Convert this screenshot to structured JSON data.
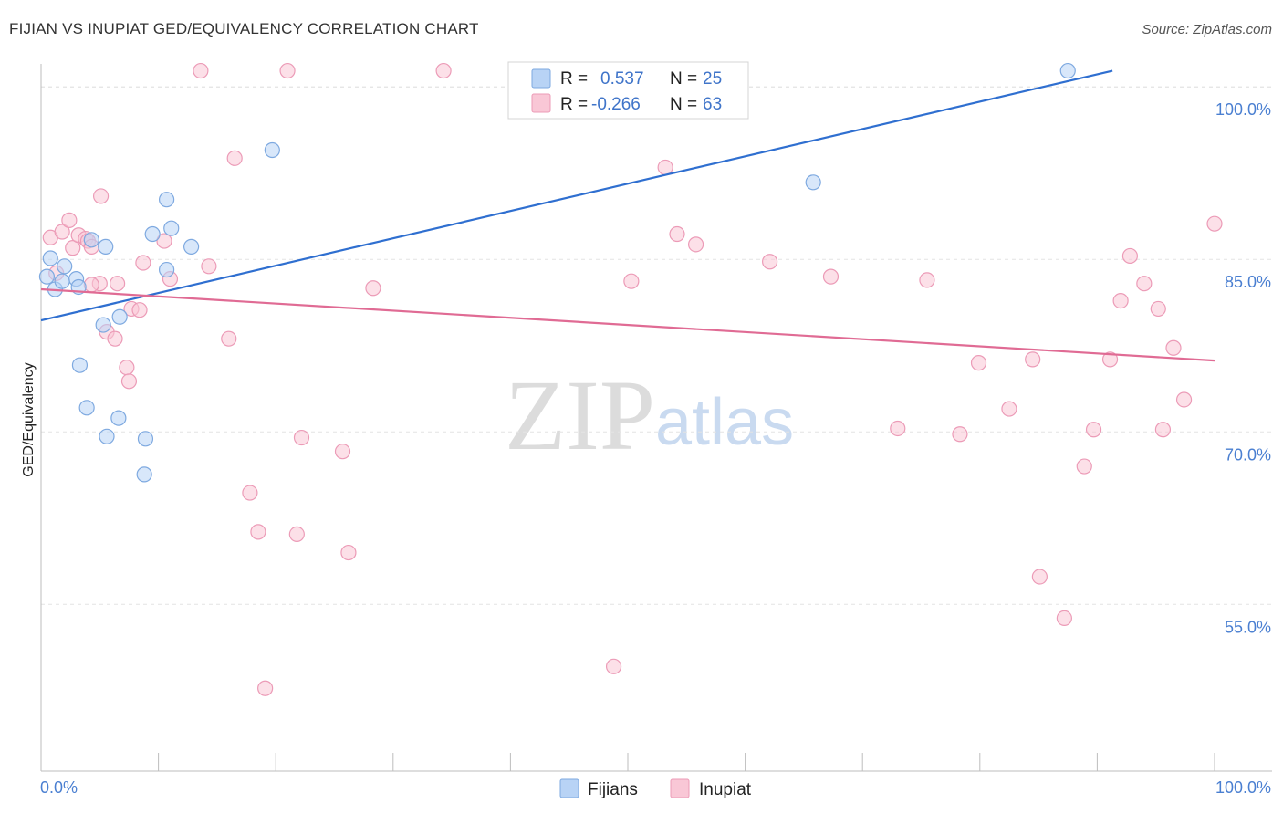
{
  "title": "FIJIAN VS INUPIAT GED/EQUIVALENCY CORRELATION CHART",
  "source": "Source: ZipAtlas.com",
  "watermark": {
    "zip": "ZIP",
    "atlas": "atlas"
  },
  "colors": {
    "fijians_fill": "#b8d3f5",
    "fijians_stroke": "#7ea9e0",
    "fijians_line": "#2f6fd0",
    "inupiat_fill": "#f9c7d6",
    "inupiat_stroke": "#ec9bb7",
    "inupiat_line": "#e06b94",
    "tick_label": "#4a7fd1"
  },
  "legend": {
    "r_label": "R =",
    "n_label": "N =",
    "rows": [
      {
        "series": "Fijians",
        "r": "0.537",
        "n": "25"
      },
      {
        "series": "Inupiat",
        "r": "-0.266",
        "n": "63"
      }
    ]
  },
  "bottom_legend": [
    "Fijians",
    "Inupiat"
  ],
  "chart_data": {
    "type": "scatter",
    "title": "FIJIAN VS INUPIAT GED/EQUIVALENCY CORRELATION CHART",
    "xlabel": "",
    "ylabel": "GED/Equivalency",
    "x_tick_labels": [
      "0.0%",
      "100.0%"
    ],
    "y_tick_labels": [
      "100.0%",
      "85.0%",
      "70.0%",
      "55.0%"
    ],
    "y_ticks": [
      100,
      85,
      70,
      55
    ],
    "xlim": [
      0,
      100
    ],
    "ylim": [
      40.5,
      102
    ],
    "grid": true,
    "legend_position": "top-center",
    "series": [
      {
        "name": "Fijians",
        "trend": {
          "x": [
            0,
            91.3
          ],
          "y": [
            79.7,
            101.4
          ]
        },
        "points": [
          [
            0.8,
            85.1
          ],
          [
            1.2,
            82.4
          ],
          [
            2.0,
            84.4
          ],
          [
            3.0,
            83.3
          ],
          [
            1.8,
            83.1
          ],
          [
            3.2,
            82.6
          ],
          [
            4.3,
            86.7
          ],
          [
            5.5,
            86.1
          ],
          [
            6.7,
            80.0
          ],
          [
            5.3,
            79.3
          ],
          [
            3.3,
            75.8
          ],
          [
            3.9,
            72.1
          ],
          [
            6.6,
            71.2
          ],
          [
            5.6,
            69.6
          ],
          [
            8.9,
            69.4
          ],
          [
            8.8,
            66.3
          ],
          [
            10.7,
            84.1
          ],
          [
            9.5,
            87.2
          ],
          [
            11.1,
            87.7
          ],
          [
            10.7,
            90.2
          ],
          [
            12.8,
            86.1
          ],
          [
            19.7,
            94.5
          ],
          [
            65.8,
            91.7
          ],
          [
            87.5,
            101.4
          ],
          [
            0.5,
            83.5
          ]
        ]
      },
      {
        "name": "Inupiat",
        "trend": {
          "x": [
            0,
            100
          ],
          "y": [
            82.4,
            76.2
          ]
        },
        "points": [
          [
            0.8,
            86.9
          ],
          [
            1.3,
            83.8
          ],
          [
            1.8,
            87.4
          ],
          [
            2.4,
            88.4
          ],
          [
            2.7,
            86.0
          ],
          [
            3.2,
            87.1
          ],
          [
            3.8,
            86.8
          ],
          [
            4.0,
            86.6
          ],
          [
            4.3,
            86.1
          ],
          [
            5.1,
            90.5
          ],
          [
            5.0,
            82.9
          ],
          [
            4.3,
            82.8
          ],
          [
            6.5,
            82.9
          ],
          [
            5.6,
            78.7
          ],
          [
            6.3,
            78.1
          ],
          [
            7.3,
            75.6
          ],
          [
            7.5,
            74.4
          ],
          [
            7.7,
            80.7
          ],
          [
            8.4,
            80.6
          ],
          [
            8.7,
            84.7
          ],
          [
            10.5,
            86.6
          ],
          [
            11.0,
            83.3
          ],
          [
            13.6,
            101.4
          ],
          [
            14.3,
            84.4
          ],
          [
            16.0,
            78.1
          ],
          [
            16.5,
            93.8
          ],
          [
            17.8,
            64.7
          ],
          [
            18.5,
            61.3
          ],
          [
            19.1,
            47.7
          ],
          [
            21.0,
            101.4
          ],
          [
            21.8,
            61.1
          ],
          [
            22.2,
            69.5
          ],
          [
            25.7,
            68.3
          ],
          [
            26.2,
            59.5
          ],
          [
            28.3,
            82.5
          ],
          [
            34.3,
            101.4
          ],
          [
            47.1,
            101.4
          ],
          [
            48.8,
            49.6
          ],
          [
            50.3,
            83.1
          ],
          [
            53.2,
            93.0
          ],
          [
            54.2,
            87.2
          ],
          [
            55.8,
            86.3
          ],
          [
            62.1,
            84.8
          ],
          [
            67.3,
            83.5
          ],
          [
            73.0,
            70.3
          ],
          [
            75.5,
            83.2
          ],
          [
            78.3,
            69.8
          ],
          [
            79.9,
            76.0
          ],
          [
            82.5,
            72.0
          ],
          [
            84.5,
            76.3
          ],
          [
            85.1,
            57.4
          ],
          [
            87.2,
            53.8
          ],
          [
            88.9,
            67.0
          ],
          [
            89.7,
            70.2
          ],
          [
            91.1,
            76.3
          ],
          [
            92.0,
            81.4
          ],
          [
            92.8,
            85.3
          ],
          [
            94.0,
            82.9
          ],
          [
            95.2,
            80.7
          ],
          [
            95.6,
            70.2
          ],
          [
            96.5,
            77.3
          ],
          [
            97.4,
            72.8
          ],
          [
            100.0,
            88.1
          ]
        ]
      }
    ]
  }
}
